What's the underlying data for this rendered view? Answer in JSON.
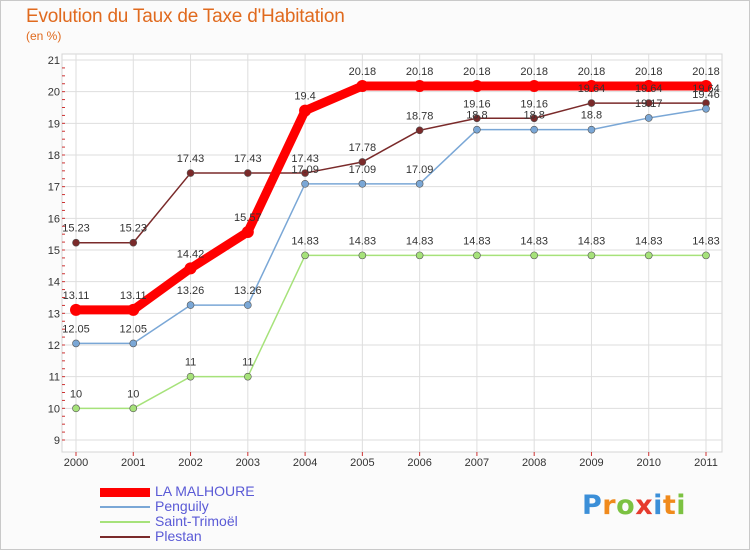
{
  "chart_data": {
    "type": "line",
    "title": "Evolution du Taux de Taxe d'Habitation",
    "subtitle": "(en %)",
    "x": [
      "2000",
      "2001",
      "2002",
      "2003",
      "2004",
      "2005",
      "2006",
      "2007",
      "2008",
      "2009",
      "2010",
      "2011"
    ],
    "ylim": [
      9,
      21
    ],
    "yticks": [
      9,
      10,
      11,
      12,
      13,
      14,
      15,
      16,
      17,
      18,
      19,
      20,
      21
    ],
    "grid": true,
    "legend_position": "bottom-left",
    "series": [
      {
        "name": "Plestan",
        "color": "#7a2a2a",
        "values": [
          15.23,
          15.23,
          17.43,
          17.43,
          17.43,
          17.78,
          18.78,
          19.16,
          19.16,
          19.64,
          19.64,
          19.64
        ],
        "labels": [
          "15.23",
          "15.23",
          "17.43",
          "17.43",
          "17.43",
          "17.78",
          "18.78",
          "19.16",
          "19.16",
          "19.64",
          "19.64",
          "19.64"
        ]
      },
      {
        "name": "Saint-Trimoël",
        "color": "#a6e27a",
        "values": [
          10,
          10,
          11,
          11,
          14.83,
          14.83,
          14.83,
          14.83,
          14.83,
          14.83,
          14.83,
          14.83
        ],
        "labels": [
          "10",
          "10",
          "11",
          "11",
          "14.83",
          "14.83",
          "14.83",
          "14.83",
          "14.83",
          "14.83",
          "14.83",
          "14.83"
        ]
      },
      {
        "name": "Penguily",
        "color": "#7aa7d6",
        "values": [
          12.05,
          12.05,
          13.26,
          13.26,
          17.09,
          17.09,
          17.09,
          18.8,
          18.8,
          18.8,
          19.17,
          19.46
        ],
        "labels": [
          "12.05",
          "12.05",
          "13.26",
          "13.26",
          "17.09",
          "17.09",
          "17.09",
          "18.8",
          "18.8",
          "18.8",
          "19.17",
          "19.46"
        ]
      },
      {
        "name": "LA MALHOURE",
        "color": "#ff0000",
        "values": [
          13.11,
          13.11,
          14.42,
          15.57,
          19.4,
          20.18,
          20.18,
          20.18,
          20.18,
          20.18,
          20.18,
          20.18
        ],
        "labels": [
          "13.11",
          "13.11",
          "14.42",
          "15.57",
          "19.4",
          "20.18",
          "20.18",
          "20.18",
          "20.18",
          "20.18",
          "20.18",
          "20.18"
        ]
      }
    ]
  },
  "legend": [
    {
      "label": "LA MALHOURE",
      "color": "#ff0000"
    },
    {
      "label": "Penguily",
      "color": "#7aa7d6"
    },
    {
      "label": "Saint-Trimoël",
      "color": "#a6e27a"
    },
    {
      "label": "Plestan",
      "color": "#7a2a2a"
    }
  ],
  "logo": {
    "text": "Proxiti",
    "letters": [
      "P",
      "r",
      "o",
      "x",
      "i",
      "t",
      "i"
    ],
    "colors": [
      "#3b8fd8",
      "#f08a1c",
      "#7cc242",
      "#e63b2e",
      "#3b8fd8",
      "#f08a1c",
      "#7cc242"
    ]
  }
}
